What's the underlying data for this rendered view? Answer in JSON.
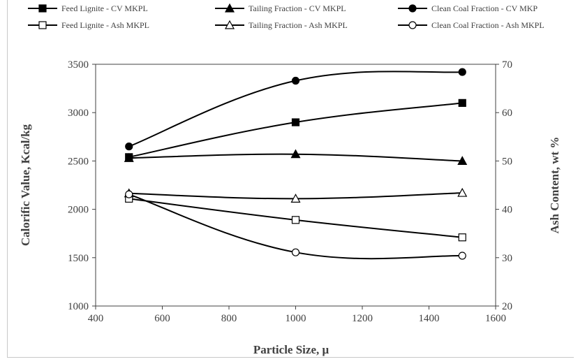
{
  "chart_data": {
    "type": "line",
    "title": "",
    "xlabel": "Particle Size, μ",
    "ylabel": "Calorific  Value, Kcal/kg",
    "y2label": "Ash Content, wt %",
    "xlim": [
      400,
      1600
    ],
    "ylim": [
      1000,
      3500
    ],
    "y2lim": [
      20,
      70
    ],
    "x_ticks": [
      400,
      600,
      800,
      1000,
      1200,
      1400,
      1600
    ],
    "y_ticks": [
      1000,
      1500,
      2000,
      2500,
      3000,
      3500
    ],
    "y2_ticks": [
      20,
      30,
      40,
      50,
      60,
      70
    ],
    "grid": false,
    "legend_position": "top",
    "series": [
      {
        "name": "Feed Lignite - CV MKPL",
        "axis": "left",
        "marker": "square-filled",
        "x": [
          500,
          1000,
          1500
        ],
        "values": [
          2540,
          2900,
          3100
        ]
      },
      {
        "name": "Tailing Fraction - CV MKPL",
        "axis": "left",
        "marker": "triangle-filled",
        "x": [
          500,
          1000,
          1500
        ],
        "values": [
          2530,
          2570,
          2500
        ]
      },
      {
        "name": "Clean Coal Fraction - CV MKP",
        "axis": "left",
        "marker": "circle-filled",
        "x": [
          500,
          1000,
          1500
        ],
        "values": [
          2650,
          3330,
          3420
        ]
      },
      {
        "name": "Feed Lignite - Ash MKPL",
        "axis": "right",
        "marker": "square-open",
        "x": [
          500,
          1000,
          1500
        ],
        "values": [
          42.2,
          37.8,
          34.2
        ]
      },
      {
        "name": "Tailing Fraction - Ash MKPL",
        "axis": "right",
        "marker": "triangle-open",
        "x": [
          500,
          1000,
          1500
        ],
        "values": [
          43.3,
          42.2,
          43.4
        ]
      },
      {
        "name": "Clean Coal Fraction - Ash MKPL",
        "axis": "right",
        "marker": "circle-open",
        "x": [
          500,
          1000,
          1500
        ],
        "values": [
          43.1,
          31.1,
          30.4
        ]
      }
    ]
  }
}
